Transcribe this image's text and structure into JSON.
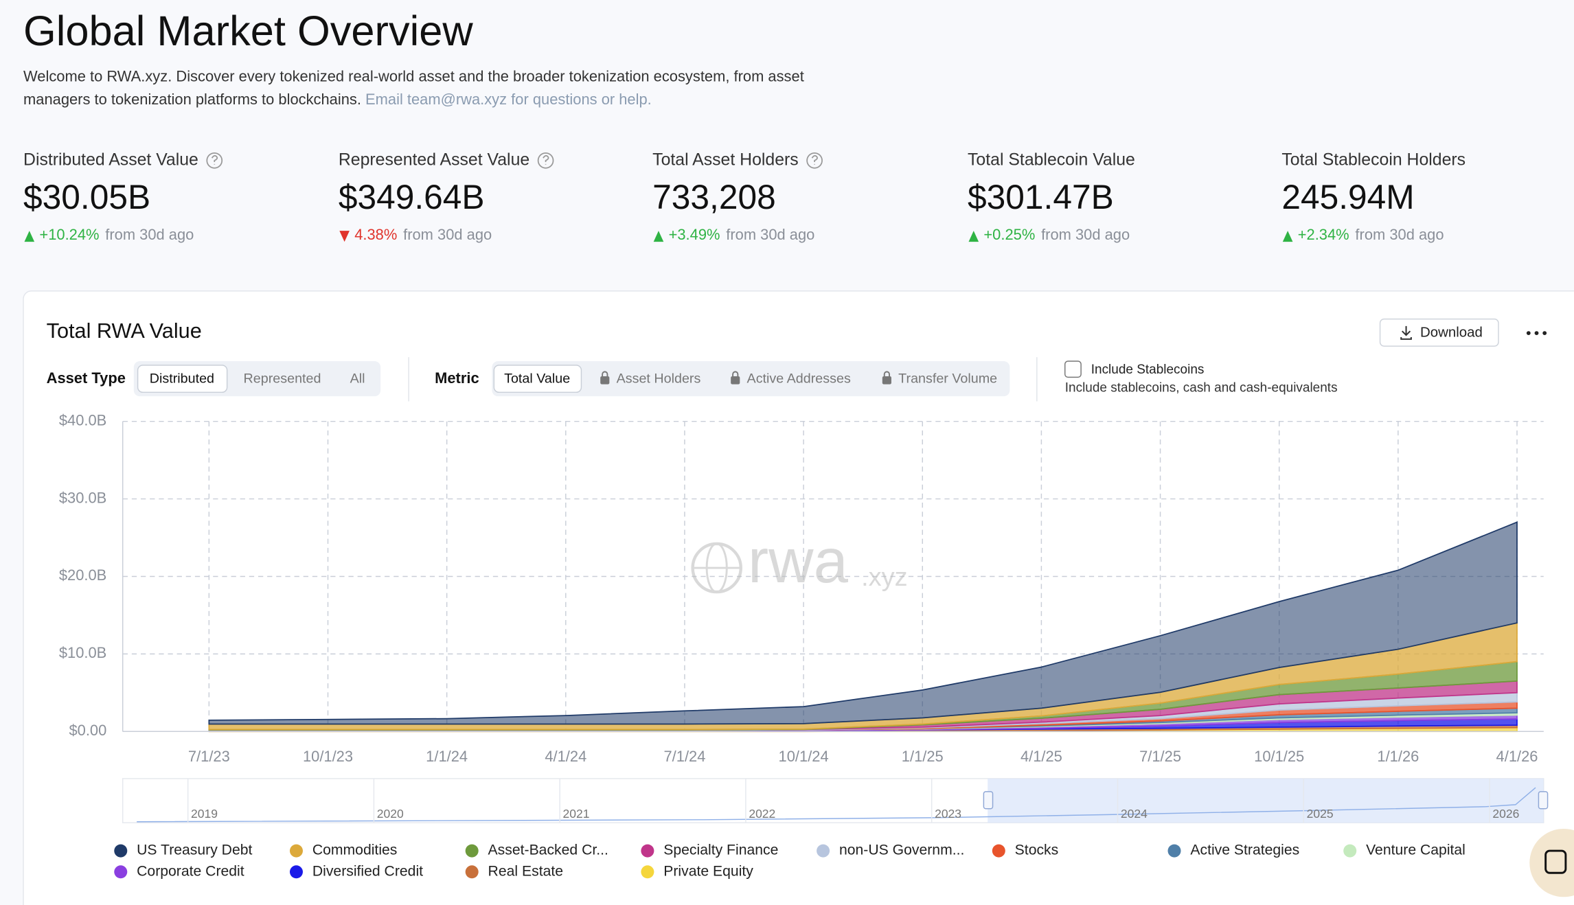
{
  "header": {
    "title": "Global Market Overview",
    "description_line1": "Welcome to RWA.xyz. Discover every tokenized real-world asset and the broader tokenization ecosystem, from asset",
    "description_line2": "managers to tokenization platforms to blockchains.",
    "description_email": "Email team@rwa.xyz for questions or help."
  },
  "stats": [
    {
      "label": "Distributed Asset Value",
      "value": "$30.05B",
      "change": "+10.24%",
      "direction": "up",
      "suffix": "from 30d ago"
    },
    {
      "label": "Represented Asset Value",
      "value": "$349.64B",
      "change": "4.38%",
      "direction": "down",
      "suffix": "from 30d ago"
    },
    {
      "label": "Total Asset Holders",
      "value": "733,208",
      "change": "+3.49%",
      "direction": "up",
      "suffix": "from 30d ago"
    },
    {
      "label": "Total Stablecoin Value",
      "value": "$301.47B",
      "change": "+0.25%",
      "direction": "up",
      "suffix": "from 30d ago"
    },
    {
      "label": "Total Stablecoin Holders",
      "value": "245.94M",
      "change": "+2.34%",
      "direction": "up",
      "suffix": "from 30d ago"
    }
  ],
  "controls": {
    "download": "Download",
    "asset_type_label": "Asset Type",
    "asset_types": [
      "Distributed",
      "Represented",
      "All"
    ],
    "metric_label": "Metric",
    "metrics": [
      "Total Value",
      "Asset Holders",
      "Active Addresses",
      "Transfer Volume"
    ],
    "checkbox_label": "Include Stablecoins",
    "checkbox_description": "Include stablecoins, cash and cash-equivalents"
  },
  "watermark": {
    "main": "rwa",
    "suffix": ".xyz"
  },
  "navigator_labels": [
    "2019",
    "2020",
    "2021",
    "2022",
    "2023",
    "2024",
    "2025",
    "2026"
  ],
  "chart_data": {
    "type": "stacked-area",
    "title": "Total RWA Value",
    "x": [
      "7/1/23",
      "10/1/23",
      "1/1/24",
      "4/1/24",
      "7/1/24",
      "10/1/24",
      "1/1/25",
      "4/1/25",
      "7/1/25",
      "10/1/25",
      "1/1/26",
      "4/1/26"
    ],
    "ylim": [
      0,
      40
    ],
    "yticks": [
      {
        "value": 0,
        "label": "$0.00"
      },
      {
        "value": 10,
        "label": "$10.0B"
      },
      {
        "value": 20,
        "label": "$20.0B"
      },
      {
        "value": 30,
        "label": "$30.0B"
      },
      {
        "value": 40,
        "label": "$40.0B"
      }
    ],
    "grid": true,
    "series": [
      {
        "name": "US Treasury Debt",
        "color": "#1f3a68",
        "values": [
          0.5,
          0.6,
          0.7,
          1.1,
          1.7,
          2.2,
          3.6,
          5.3,
          7.3,
          8.5,
          10.2,
          13.0
        ]
      },
      {
        "name": "Commodities",
        "color": "#dca93a",
        "values": [
          0.7,
          0.7,
          0.7,
          0.7,
          0.7,
          0.7,
          0.8,
          1.0,
          1.4,
          2.2,
          3.2,
          5.0
        ]
      },
      {
        "name": "Asset-Backed Cr...",
        "color": "#6e9a3c",
        "values": [
          0.05,
          0.05,
          0.05,
          0.05,
          0.05,
          0.05,
          0.1,
          0.3,
          0.8,
          1.3,
          1.8,
          2.5
        ]
      },
      {
        "name": "Specialty Finance",
        "color": "#c0358a",
        "values": [
          0,
          0,
          0,
          0,
          0,
          0,
          0.3,
          0.5,
          0.8,
          1.2,
          1.3,
          1.5
        ]
      },
      {
        "name": "non-US Governm...",
        "color": "#b7c5de",
        "values": [
          0.05,
          0.05,
          0.05,
          0.05,
          0.05,
          0.05,
          0.1,
          0.2,
          0.4,
          0.8,
          1.0,
          1.2
        ]
      },
      {
        "name": "Stocks",
        "color": "#e8542c",
        "values": [
          0,
          0,
          0,
          0,
          0,
          0,
          0.1,
          0.2,
          0.3,
          0.6,
          0.7,
          0.8
        ]
      },
      {
        "name": "Active Strategies",
        "color": "#4f7fa8",
        "values": [
          0,
          0,
          0,
          0,
          0,
          0,
          0,
          0.1,
          0.2,
          0.4,
          0.5,
          0.6
        ]
      },
      {
        "name": "Venture Capital",
        "color": "#c4eabd",
        "values": [
          0,
          0,
          0,
          0,
          0,
          0,
          0.05,
          0.1,
          0.15,
          0.2,
          0.25,
          0.3
        ]
      },
      {
        "name": "Corporate Credit",
        "color": "#8a3fe0",
        "values": [
          0.05,
          0.05,
          0.05,
          0.05,
          0.05,
          0.1,
          0.1,
          0.2,
          0.3,
          0.4,
          0.45,
          0.5
        ]
      },
      {
        "name": "Diversified Credit",
        "color": "#1a1ae8",
        "values": [
          0,
          0,
          0,
          0,
          0,
          0,
          0,
          0.1,
          0.3,
          0.6,
          0.7,
          0.8
        ]
      },
      {
        "name": "Real Estate",
        "color": "#c8703a",
        "values": [
          0.1,
          0.1,
          0.1,
          0.1,
          0.1,
          0.1,
          0.15,
          0.2,
          0.2,
          0.25,
          0.3,
          0.3
        ]
      },
      {
        "name": "Private Equity",
        "color": "#f5d63c",
        "values": [
          0,
          0,
          0,
          0,
          0,
          0,
          0.05,
          0.1,
          0.2,
          0.3,
          0.4,
          0.5
        ]
      }
    ]
  }
}
